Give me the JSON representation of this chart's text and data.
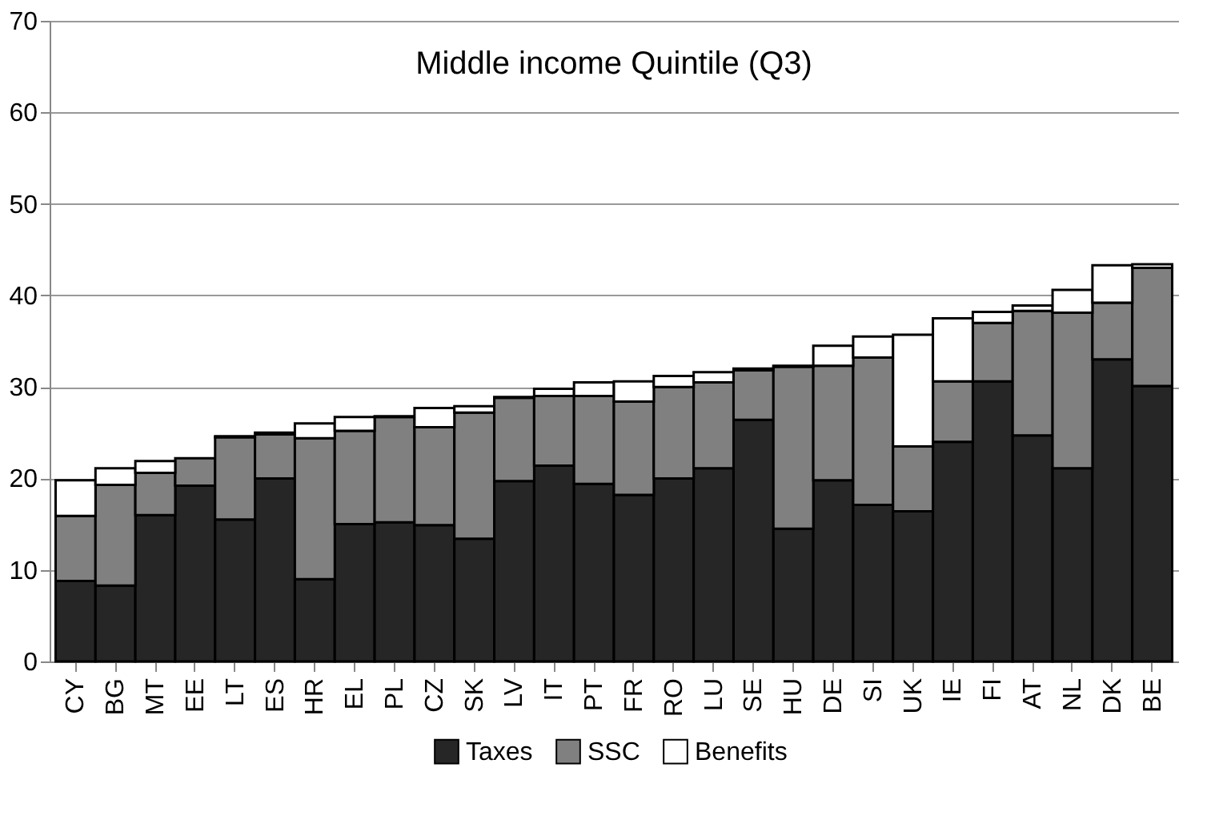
{
  "chart_data": {
    "type": "bar",
    "stacked": true,
    "title": "Middle income Quintile (Q3)",
    "categories": [
      "CY",
      "BG",
      "MT",
      "EE",
      "LT",
      "ES",
      "HR",
      "EL",
      "PL",
      "CZ",
      "SK",
      "LV",
      "IT",
      "PT",
      "FR",
      "RO",
      "LU",
      "SE",
      "HU",
      "DE",
      "SI",
      "UK",
      "IE",
      "FI",
      "AT",
      "NL",
      "DK",
      "BE"
    ],
    "series": [
      {
        "name": "Taxes",
        "color": "#262626",
        "values": [
          8.8,
          8.3,
          16.0,
          19.2,
          15.5,
          20.0,
          9.0,
          15.0,
          15.2,
          14.9,
          13.4,
          19.7,
          21.4,
          19.4,
          18.2,
          20.0,
          21.1,
          26.4,
          14.5,
          19.8,
          17.1,
          16.4,
          24.0,
          30.6,
          24.7,
          21.1,
          33.0,
          30.1
        ]
      },
      {
        "name": "SSC",
        "color": "#808080",
        "values": [
          7.1,
          11.0,
          4.6,
          3.0,
          9.0,
          4.8,
          15.4,
          10.2,
          11.5,
          10.7,
          13.8,
          9.1,
          7.6,
          9.6,
          10.2,
          10.0,
          9.4,
          5.4,
          17.7,
          12.5,
          16.1,
          7.1,
          6.6,
          6.4,
          13.6,
          17.0,
          6.2,
          12.9
        ]
      },
      {
        "name": "Benefits",
        "color": "#ffffff",
        "values": [
          3.9,
          1.8,
          1.3,
          null,
          0.1,
          0.2,
          1.6,
          1.5,
          0.1,
          2.1,
          0.7,
          0.1,
          0.8,
          1.5,
          2.2,
          1.2,
          1.1,
          0.2,
          0.1,
          2.2,
          2.3,
          12.2,
          6.9,
          1.2,
          0.6,
          2.5,
          4.1,
          0.4
        ]
      }
    ],
    "ylim": [
      0,
      70
    ],
    "yticks": [
      0,
      10,
      20,
      30,
      40,
      50,
      60,
      70
    ],
    "grid": "y",
    "legend": "bottom"
  }
}
